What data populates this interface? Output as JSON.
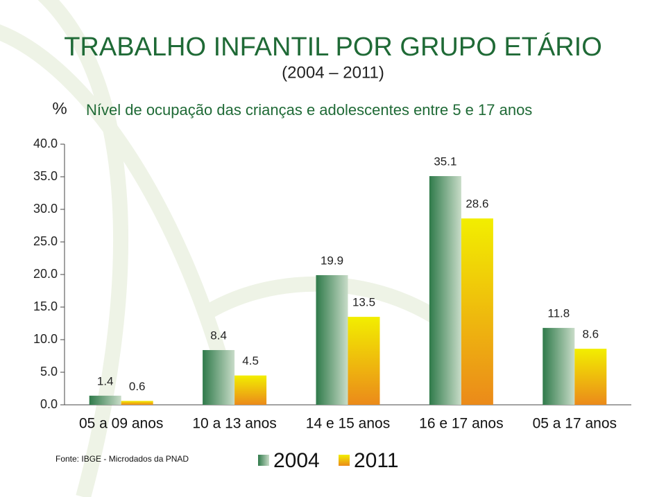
{
  "chart_data": {
    "type": "bar",
    "title": "TRABALHO INFANTIL POR GRUPO ETÁRIO",
    "subtitle": "(2004 – 2011)",
    "y_label": "%",
    "chart_title": "Nível de ocupação das crianças e  adolescentes entre 5 e 17 anos",
    "source": "Fonte: IBGE - Microdados da PNAD",
    "categories": [
      "05 a 09 anos",
      "10 a 13 anos",
      "14 e 15 anos",
      "16 e 17 anos",
      "05 a 17 anos"
    ],
    "series": [
      {
        "name": "2004",
        "color": "#2f7a4a",
        "values": [
          1.4,
          8.4,
          19.9,
          35.1,
          11.8
        ]
      },
      {
        "name": "2011",
        "color": "#eb8a1a",
        "values": [
          0.6,
          4.5,
          13.5,
          28.6,
          8.6
        ]
      }
    ],
    "ylim": [
      0,
      40
    ],
    "yticks": [
      {
        "value": 0,
        "label": "0.0"
      },
      {
        "value": 5,
        "label": "5.0"
      },
      {
        "value": 10,
        "label": "10.0"
      },
      {
        "value": 15,
        "label": "15.0"
      },
      {
        "value": 20,
        "label": "20.0"
      },
      {
        "value": 25,
        "label": "25.0"
      },
      {
        "value": 30,
        "label": "30.0"
      },
      {
        "value": 35,
        "label": "35.0"
      },
      {
        "value": 40,
        "label": "40.0"
      }
    ]
  }
}
